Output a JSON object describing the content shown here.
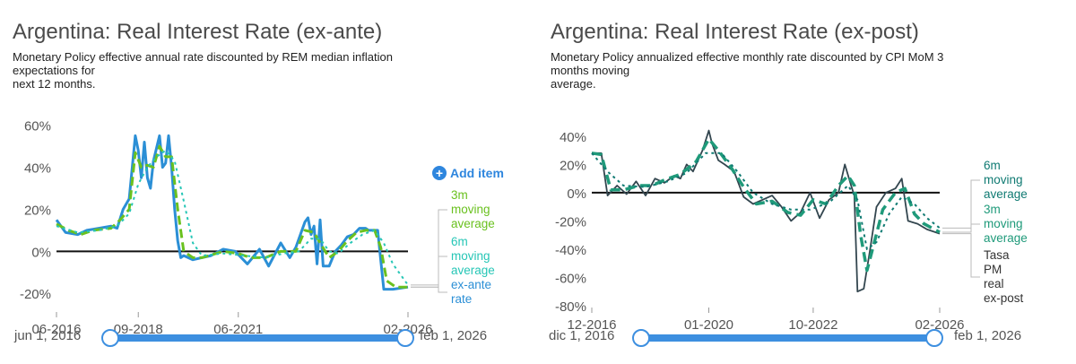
{
  "left": {
    "title": "Argentina: Real Interest Rate (ex-ante)",
    "subtitle": [
      "Monetary Policy effective annual rate discounted by REM median inflation",
      "expectations for",
      "next 12 months."
    ],
    "add_item": "Add item",
    "range_start": "jun 1, 2016",
    "range_end": "feb 1, 2026"
  },
  "right": {
    "title": "Argentina: Real Interest Rate (ex-post)",
    "subtitle": [
      "Monetary Policy annualized effective monthly rate discounted by CPI MoM 3",
      "months moving",
      "average."
    ],
    "range_start": "dic 1, 2016",
    "range_end": "feb 1, 2026"
  },
  "colors": {
    "left_rate": "#2b8fd6",
    "left_3m": "#6ac11f",
    "left_6m": "#26c6b6",
    "right_rate": "#33464f",
    "right_3m": "#1f9a7a",
    "right_6m": "#0f7a72",
    "zero_line": "#111111",
    "slider": "#3d8fe0"
  },
  "chart_data": [
    {
      "type": "line",
      "title": "Argentina: Real Interest Rate (ex-ante)",
      "x_ticks": [
        "06-2016",
        "09-2018",
        "06-2021",
        "02-2026"
      ],
      "x_range": [
        "2016-06",
        "2026-02"
      ],
      "y_ticks": [
        "60%",
        "40%",
        "20%",
        "0%",
        "-20%"
      ],
      "ylim": [
        -28,
        65
      ],
      "series": [
        {
          "name": "ex-ante rate",
          "points": [
            [
              "2016-06",
              15
            ],
            [
              "2016-09",
              9
            ],
            [
              "2017-01",
              8
            ],
            [
              "2017-04",
              10
            ],
            [
              "2017-08",
              11
            ],
            [
              "2017-12",
              12
            ],
            [
              "2018-02",
              11
            ],
            [
              "2018-04",
              20
            ],
            [
              "2018-06",
              25
            ],
            [
              "2018-08",
              55
            ],
            [
              "2018-09",
              48
            ],
            [
              "2018-10",
              35
            ],
            [
              "2018-11",
              52
            ],
            [
              "2018-12",
              35
            ],
            [
              "2019-01",
              30
            ],
            [
              "2019-02",
              43
            ],
            [
              "2019-04",
              55
            ],
            [
              "2019-05",
              40
            ],
            [
              "2019-06",
              42
            ],
            [
              "2019-07",
              55
            ],
            [
              "2019-08",
              40
            ],
            [
              "2019-09",
              20
            ],
            [
              "2019-10",
              5
            ],
            [
              "2019-11",
              -3
            ],
            [
              "2019-12",
              -2
            ],
            [
              "2020-03",
              -4
            ],
            [
              "2020-06",
              -3
            ],
            [
              "2020-09",
              -2
            ],
            [
              "2021-01",
              1
            ],
            [
              "2021-05",
              0
            ],
            [
              "2021-09",
              -6
            ],
            [
              "2022-01",
              1
            ],
            [
              "2022-04",
              -7
            ],
            [
              "2022-08",
              4
            ],
            [
              "2022-11",
              -3
            ],
            [
              "2023-01",
              2
            ],
            [
              "2023-04",
              14
            ],
            [
              "2023-05",
              16
            ],
            [
              "2023-06",
              8
            ],
            [
              "2023-07",
              12
            ],
            [
              "2023-08",
              -6
            ],
            [
              "2023-09",
              15
            ],
            [
              "2023-10",
              -7
            ],
            [
              "2023-12",
              -7
            ],
            [
              "2024-02",
              0
            ],
            [
              "2024-04",
              3
            ],
            [
              "2024-06",
              7
            ],
            [
              "2024-08",
              8
            ],
            [
              "2024-10",
              11
            ],
            [
              "2024-12",
              11
            ],
            [
              "2025-01",
              10
            ],
            [
              "2025-04",
              10
            ],
            [
              "2025-06",
              -18
            ],
            [
              "2025-09",
              -18
            ],
            [
              "2026-02",
              -17
            ]
          ]
        },
        {
          "name": "3m moving average",
          "points": [
            [
              "2016-06",
              13
            ],
            [
              "2016-10",
              10
            ],
            [
              "2017-02",
              8
            ],
            [
              "2017-06",
              10
            ],
            [
              "2017-12",
              11
            ],
            [
              "2018-03",
              15
            ],
            [
              "2018-06",
              20
            ],
            [
              "2018-08",
              47
            ],
            [
              "2018-10",
              40
            ],
            [
              "2018-12",
              41
            ],
            [
              "2019-02",
              40
            ],
            [
              "2019-04",
              50
            ],
            [
              "2019-06",
              45
            ],
            [
              "2019-08",
              45
            ],
            [
              "2019-10",
              20
            ],
            [
              "2019-12",
              0
            ],
            [
              "2020-03",
              -3
            ],
            [
              "2020-06",
              -3
            ],
            [
              "2021-01",
              0
            ],
            [
              "2021-06",
              -1
            ],
            [
              "2021-10",
              -3
            ],
            [
              "2022-03",
              -3
            ],
            [
              "2022-08",
              0
            ],
            [
              "2023-01",
              0
            ],
            [
              "2023-04",
              10
            ],
            [
              "2023-07",
              9
            ],
            [
              "2023-09",
              4
            ],
            [
              "2023-12",
              -3
            ],
            [
              "2024-03",
              0
            ],
            [
              "2024-06",
              5
            ],
            [
              "2024-09",
              9
            ],
            [
              "2024-12",
              10
            ],
            [
              "2025-03",
              10
            ],
            [
              "2025-05",
              2
            ],
            [
              "2025-07",
              -14
            ],
            [
              "2025-10",
              -17
            ],
            [
              "2026-02",
              -17
            ]
          ]
        },
        {
          "name": "6m moving average",
          "points": [
            [
              "2016-06",
              12
            ],
            [
              "2017-01",
              9
            ],
            [
              "2017-08",
              10
            ],
            [
              "2018-02",
              12
            ],
            [
              "2018-06",
              18
            ],
            [
              "2018-09",
              32
            ],
            [
              "2018-12",
              40
            ],
            [
              "2019-03",
              45
            ],
            [
              "2019-06",
              48
            ],
            [
              "2019-09",
              43
            ],
            [
              "2019-12",
              24
            ],
            [
              "2020-03",
              4
            ],
            [
              "2020-06",
              -2
            ],
            [
              "2021-01",
              -1
            ],
            [
              "2021-08",
              -2
            ],
            [
              "2022-03",
              -3
            ],
            [
              "2022-09",
              -1
            ],
            [
              "2023-02",
              0
            ],
            [
              "2023-06",
              6
            ],
            [
              "2023-09",
              6
            ],
            [
              "2023-12",
              0
            ],
            [
              "2024-03",
              -1
            ],
            [
              "2024-07",
              4
            ],
            [
              "2024-11",
              8
            ],
            [
              "2025-03",
              10
            ],
            [
              "2025-06",
              4
            ],
            [
              "2025-09",
              -6
            ],
            [
              "2026-02",
              -16
            ]
          ]
        }
      ]
    },
    {
      "type": "line",
      "title": "Argentina: Real Interest Rate (ex-post)",
      "x_ticks": [
        "12-2016",
        "01-2020",
        "10-2022",
        "02-2026"
      ],
      "x_range": [
        "2016-12",
        "2026-02"
      ],
      "y_ticks": [
        "40%",
        "20%",
        "0%",
        "-20%",
        "-40%",
        "-60%",
        "-80%"
      ],
      "ylim": [
        -80,
        45
      ],
      "series": [
        {
          "name": "Tasa PM real ex-post",
          "points": [
            [
              "2016-12",
              28
            ],
            [
              "2017-03",
              28
            ],
            [
              "2017-05",
              -2
            ],
            [
              "2017-08",
              5
            ],
            [
              "2017-11",
              -1
            ],
            [
              "2018-02",
              8
            ],
            [
              "2018-05",
              -2
            ],
            [
              "2018-08",
              10
            ],
            [
              "2018-11",
              7
            ],
            [
              "2019-02",
              12
            ],
            [
              "2019-04",
              10
            ],
            [
              "2019-06",
              20
            ],
            [
              "2019-08",
              15
            ],
            [
              "2019-11",
              30
            ],
            [
              "2020-01",
              44
            ],
            [
              "2020-02",
              35
            ],
            [
              "2020-04",
              23
            ],
            [
              "2020-06",
              20
            ],
            [
              "2020-09",
              15
            ],
            [
              "2020-12",
              -3
            ],
            [
              "2021-03",
              -8
            ],
            [
              "2021-06",
              -5
            ],
            [
              "2021-09",
              -2
            ],
            [
              "2021-12",
              -10
            ],
            [
              "2022-03",
              -20
            ],
            [
              "2022-06",
              -14
            ],
            [
              "2022-09",
              0
            ],
            [
              "2022-12",
              -18
            ],
            [
              "2023-03",
              -5
            ],
            [
              "2023-06",
              0
            ],
            [
              "2023-08",
              20
            ],
            [
              "2023-10",
              5
            ],
            [
              "2023-11",
              -2
            ],
            [
              "2023-12",
              -70
            ],
            [
              "2024-02",
              -68
            ],
            [
              "2024-04",
              -40
            ],
            [
              "2024-06",
              -10
            ],
            [
              "2024-09",
              0
            ],
            [
              "2024-12",
              3
            ],
            [
              "2025-02",
              10
            ],
            [
              "2025-04",
              -20
            ],
            [
              "2025-07",
              -22
            ],
            [
              "2025-10",
              -26
            ],
            [
              "2026-02",
              -29
            ]
          ]
        },
        {
          "name": "3m moving average",
          "points": [
            [
              "2016-12",
              28
            ],
            [
              "2017-03",
              27
            ],
            [
              "2017-06",
              2
            ],
            [
              "2017-10",
              2
            ],
            [
              "2018-03",
              5
            ],
            [
              "2018-07",
              5
            ],
            [
              "2018-11",
              9
            ],
            [
              "2019-04",
              13
            ],
            [
              "2019-09",
              22
            ],
            [
              "2020-01",
              38
            ],
            [
              "2020-04",
              30
            ],
            [
              "2020-08",
              18
            ],
            [
              "2020-12",
              4
            ],
            [
              "2021-04",
              -8
            ],
            [
              "2021-09",
              -6
            ],
            [
              "2022-02",
              -14
            ],
            [
              "2022-06",
              -16
            ],
            [
              "2022-10",
              -5
            ],
            [
              "2023-02",
              -8
            ],
            [
              "2023-06",
              5
            ],
            [
              "2023-09",
              12
            ],
            [
              "2023-11",
              5
            ],
            [
              "2024-01",
              -30
            ],
            [
              "2024-03",
              -55
            ],
            [
              "2024-05",
              -38
            ],
            [
              "2024-08",
              -12
            ],
            [
              "2024-12",
              0
            ],
            [
              "2025-03",
              3
            ],
            [
              "2025-06",
              -15
            ],
            [
              "2025-09",
              -22
            ],
            [
              "2026-02",
              -28
            ]
          ]
        },
        {
          "name": "6m moving average",
          "points": [
            [
              "2016-12",
              28
            ],
            [
              "2017-05",
              15
            ],
            [
              "2017-10",
              5
            ],
            [
              "2018-05",
              4
            ],
            [
              "2018-12",
              8
            ],
            [
              "2019-06",
              14
            ],
            [
              "2019-12",
              28
            ],
            [
              "2020-05",
              28
            ],
            [
              "2020-10",
              15
            ],
            [
              "2021-03",
              0
            ],
            [
              "2021-09",
              -8
            ],
            [
              "2022-03",
              -12
            ],
            [
              "2022-09",
              -12
            ],
            [
              "2023-03",
              -7
            ],
            [
              "2023-09",
              5
            ],
            [
              "2023-12",
              -5
            ],
            [
              "2024-03",
              -40
            ],
            [
              "2024-06",
              -35
            ],
            [
              "2024-10",
              -15
            ],
            [
              "2025-02",
              -3
            ],
            [
              "2025-06",
              -8
            ],
            [
              "2025-10",
              -18
            ],
            [
              "2026-02",
              -25
            ]
          ]
        }
      ]
    }
  ]
}
